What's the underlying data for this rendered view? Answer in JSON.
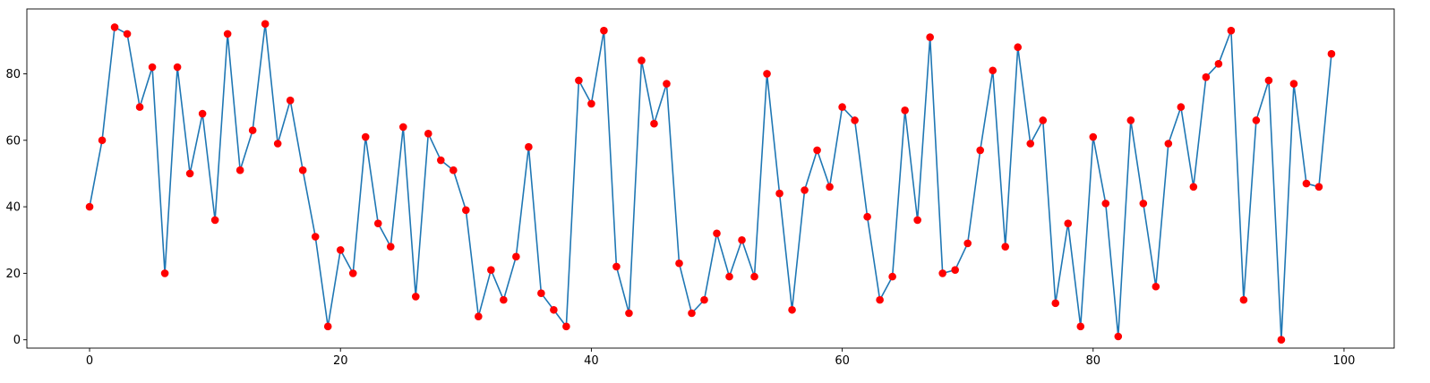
{
  "chart_data": {
    "type": "line",
    "title": "",
    "xlabel": "",
    "ylabel": "",
    "xlim": [
      -5,
      104
    ],
    "ylim": [
      -2.5,
      99.5
    ],
    "grid": false,
    "x_ticks": [
      0,
      20,
      40,
      60,
      80,
      100
    ],
    "y_ticks": [
      0,
      20,
      40,
      60,
      80
    ],
    "x_tick_labels": [
      "0",
      "20",
      "40",
      "60",
      "80",
      "100"
    ],
    "y_tick_labels": [
      "0",
      "20",
      "40",
      "60",
      "80"
    ],
    "series": [
      {
        "line_color": "#1f77b4",
        "marker_color": "#ff0000",
        "x": [
          0,
          1,
          2,
          3,
          4,
          5,
          6,
          7,
          8,
          9,
          10,
          11,
          12,
          13,
          14,
          15,
          16,
          17,
          18,
          19,
          20,
          21,
          22,
          23,
          24,
          25,
          26,
          27,
          28,
          29,
          30,
          31,
          32,
          33,
          34,
          35,
          36,
          37,
          38,
          39,
          40,
          41,
          42,
          43,
          44,
          45,
          46,
          47,
          48,
          49,
          50,
          51,
          52,
          53,
          54,
          55,
          56,
          57,
          58,
          59,
          60,
          61,
          62,
          63,
          64,
          65,
          66,
          67,
          68,
          69,
          70,
          71,
          72,
          73,
          74,
          75,
          76,
          77,
          78,
          79,
          80,
          81,
          82,
          83,
          84,
          85,
          86,
          87,
          88,
          89,
          90,
          91,
          92,
          93,
          94,
          95,
          96,
          97,
          98,
          99
        ],
        "values": [
          40,
          60,
          94,
          92,
          70,
          82,
          20,
          82,
          50,
          68,
          36,
          92,
          51,
          63,
          95,
          59,
          72,
          51,
          31,
          4,
          27,
          20,
          61,
          35,
          28,
          64,
          13,
          62,
          54,
          51,
          39,
          7,
          21,
          12,
          25,
          58,
          14,
          9,
          4,
          78,
          71,
          93,
          22,
          8,
          84,
          65,
          77,
          23,
          8,
          12,
          32,
          19,
          30,
          19,
          80,
          44,
          9,
          45,
          57,
          46,
          70,
          66,
          37,
          12,
          19,
          69,
          36,
          91,
          20,
          21,
          29,
          57,
          81,
          28,
          88,
          59,
          66,
          11,
          35,
          4,
          61,
          41,
          1,
          66,
          41,
          16,
          59,
          70,
          46,
          79,
          83,
          93,
          12,
          66,
          78,
          0,
          77,
          47,
          46,
          86
        ]
      }
    ]
  }
}
